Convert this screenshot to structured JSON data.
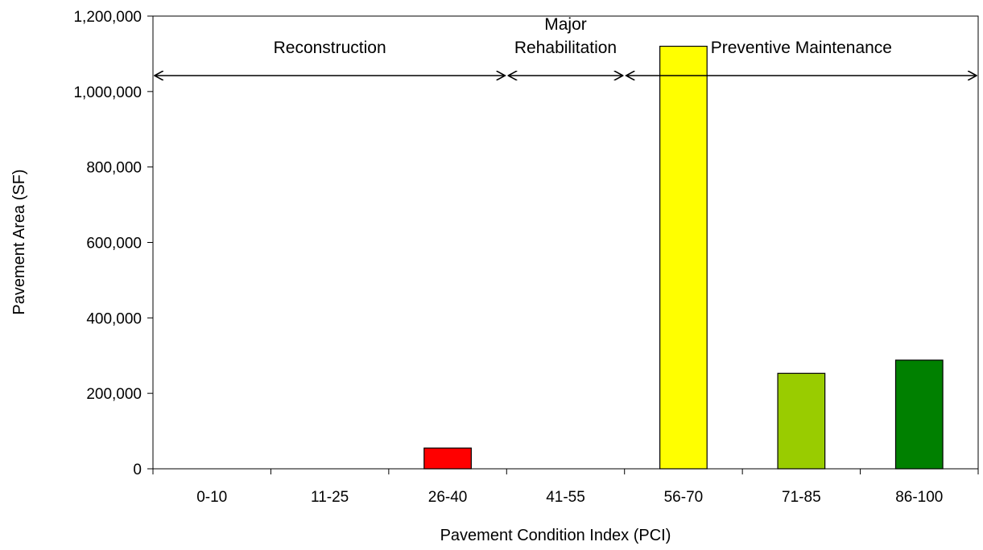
{
  "chart_data": {
    "type": "bar",
    "title": "",
    "xlabel": "Pavement Condition Index (PCI)",
    "ylabel": "Pavement Area (SF)",
    "ylim": [
      0,
      1200000
    ],
    "yticks": [
      0,
      200000,
      400000,
      600000,
      800000,
      1000000,
      1200000
    ],
    "ytick_labels": [
      "0",
      "200,000",
      "400,000",
      "600,000",
      "800,000",
      "1,000,000",
      "1,200,000"
    ],
    "categories": [
      "0-10",
      "11-25",
      "26-40",
      "41-55",
      "56-70",
      "71-85",
      "86-100"
    ],
    "values": [
      0,
      0,
      55000,
      0,
      1120000,
      253000,
      288000
    ],
    "bar_colors": [
      "#ff0000",
      "#ff0000",
      "#ff0000",
      "#ffff00",
      "#ffff00",
      "#99cc00",
      "#008000"
    ],
    "grid": false,
    "legend": "none",
    "annotations": [
      {
        "lines": [
          "Reconstruction"
        ],
        "from_category": 0,
        "to_category": 2
      },
      {
        "lines": [
          "Major",
          "Rehabilitation"
        ],
        "from_category": 3,
        "to_category": 3
      },
      {
        "lines": [
          "Preventive Maintenance"
        ],
        "from_category": 4,
        "to_category": 6
      }
    ]
  }
}
